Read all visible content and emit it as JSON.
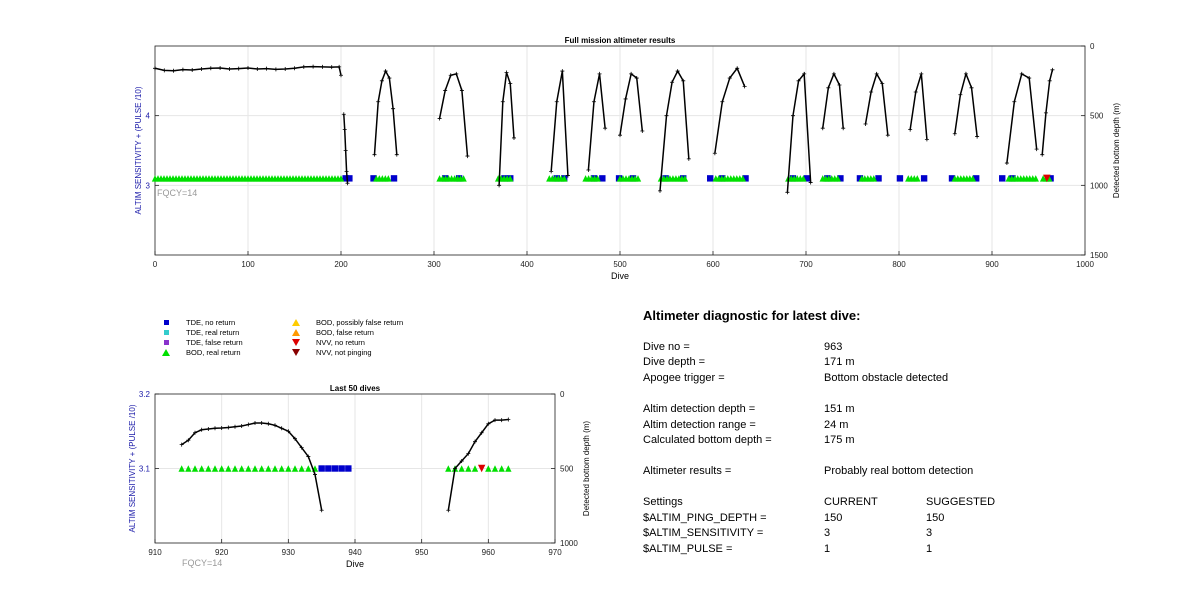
{
  "chart_data": [
    {
      "type": "scatter",
      "title": "Full mission altimeter results",
      "xlabel": "Dive",
      "ylabel_left": "ALTIM SENSITIVITY + (PULSE /10)",
      "ylabel_right": "Detected bottom depth (m)",
      "xlim": [
        0,
        1000
      ],
      "ylim_left": [
        2.0,
        5.0
      ],
      "ylim_right": [
        1500,
        0
      ],
      "x_ticks": [
        "0",
        "100",
        "200",
        "300",
        "400",
        "500",
        "600",
        "700",
        "800",
        "900",
        "1000"
      ],
      "y_ticks_left": [
        "3",
        "4"
      ],
      "y_ticks_right": [
        "0",
        "500",
        "1000",
        "1500"
      ],
      "grid": true,
      "annotation": "FQCY=14",
      "series": [
        {
          "name": "TDE, no return",
          "marker": "square",
          "color": "#0000cc",
          "x": [
            205,
            209,
            235,
            257,
            312,
            327,
            376,
            382,
            432,
            440,
            472,
            481,
            499,
            514,
            549,
            568,
            597,
            610,
            635,
            686,
            701,
            723,
            737,
            758,
            778,
            801,
            827,
            857,
            883,
            911,
            922,
            963
          ],
          "y": [
            3.1,
            3.1,
            3.1,
            3.1,
            3.1,
            3.1,
            3.1,
            3.1,
            3.1,
            3.1,
            3.1,
            3.1,
            3.1,
            3.1,
            3.1,
            3.1,
            3.1,
            3.1,
            3.1,
            3.1,
            3.1,
            3.1,
            3.1,
            3.1,
            3.1,
            3.1,
            3.1,
            3.1,
            3.1,
            3.1,
            3.1,
            3.1
          ]
        },
        {
          "name": "BOD, real return",
          "marker": "triangle-up",
          "color": "#00e000",
          "segments": [
            [
              0,
              200
            ],
            [
              238,
              252
            ],
            [
              306,
              334
            ],
            [
              369,
              384
            ],
            [
              424,
              442
            ],
            [
              463,
              478
            ],
            [
              500,
              520
            ],
            [
              544,
              570
            ],
            [
              603,
              635
            ],
            [
              681,
              700
            ],
            [
              718,
              735
            ],
            [
              760,
              775
            ],
            [
              810,
              820
            ],
            [
              860,
              880
            ],
            [
              918,
              950
            ],
            [
              955,
              962
            ]
          ],
          "y": 3.1
        },
        {
          "name": "NVV, no return",
          "marker": "triangle-down",
          "color": "#dd0000",
          "x": [
            959
          ],
          "y": [
            3.1
          ]
        },
        {
          "name": "Detected bottom depth",
          "axis": "right",
          "marker": "plus",
          "color": "#000000",
          "segments": [
            {
              "x": [
                0,
                10,
                20,
                30,
                40,
                50,
                60,
                70,
                80,
                90,
                100,
                110,
                120,
                130,
                140,
                150,
                160,
                170,
                180,
                190,
                198,
                200
              ],
              "y": [
                160,
                175,
                178,
                170,
                172,
                165,
                160,
                158,
                165,
                162,
                158,
                165,
                162,
                168,
                165,
                160,
                150,
                148,
                150,
                152,
                150,
                210
              ]
            },
            {
              "x": [
                203,
                204,
                205,
                206,
                207
              ],
              "y": [
                490,
                600,
                750,
                900,
                985
              ]
            },
            {
              "x": [
                236,
                240,
                244,
                248,
                252,
                256,
                260
              ],
              "y": [
                780,
                400,
                250,
                180,
                230,
                450,
                780
              ]
            },
            {
              "x": [
                306,
                312,
                318,
                324,
                330,
                336
              ],
              "y": [
                520,
                320,
                210,
                200,
                320,
                790
              ]
            },
            {
              "x": [
                370,
                374,
                378,
                382,
                386
              ],
              "y": [
                1000,
                400,
                190,
                270,
                660
              ]
            },
            {
              "x": [
                426,
                432,
                438,
                444
              ],
              "y": [
                900,
                400,
                180,
                930
              ]
            },
            {
              "x": [
                466,
                472,
                478,
                484
              ],
              "y": [
                890,
                400,
                200,
                590
              ]
            },
            {
              "x": [
                500,
                506,
                512,
                518,
                524
              ],
              "y": [
                640,
                380,
                200,
                230,
                610
              ]
            },
            {
              "x": [
                543,
                550,
                556,
                562,
                568,
                574
              ],
              "y": [
                1040,
                500,
                260,
                180,
                250,
                810
              ]
            },
            {
              "x": [
                602,
                610,
                618,
                626,
                634
              ],
              "y": [
                770,
                400,
                230,
                160,
                290
              ]
            },
            {
              "x": [
                680,
                686,
                692,
                698,
                705
              ],
              "y": [
                1050,
                500,
                250,
                200,
                980
              ]
            },
            {
              "x": [
                718,
                724,
                730,
                736,
                740
              ],
              "y": [
                590,
                300,
                200,
                280,
                590
              ]
            },
            {
              "x": [
                764,
                770,
                776,
                782,
                788
              ],
              "y": [
                560,
                330,
                200,
                270,
                640
              ]
            },
            {
              "x": [
                812,
                818,
                824,
                830
              ],
              "y": [
                600,
                330,
                200,
                670
              ]
            },
            {
              "x": [
                860,
                866,
                872,
                878,
                884
              ],
              "y": [
                630,
                350,
                200,
                300,
                650
              ]
            },
            {
              "x": [
                916,
                924,
                932,
                940,
                948
              ],
              "y": [
                840,
                400,
                200,
                230,
                740
              ]
            },
            {
              "x": [
                954,
                958,
                962,
                965
              ],
              "y": [
                780,
                480,
                250,
                171
              ]
            }
          ]
        }
      ]
    },
    {
      "type": "scatter",
      "title": "Last 50 dives",
      "xlabel": "Dive",
      "ylabel_left": "ALTIM SENSITIVITY + (PULSE /10)",
      "ylabel_right": "Detected bottom depth (m)",
      "xlim": [
        910,
        970
      ],
      "ylim_left": [
        3.0,
        3.2
      ],
      "ylim_right": [
        1000,
        0
      ],
      "x_ticks": [
        "910",
        "920",
        "930",
        "940",
        "950",
        "960",
        "970"
      ],
      "y_ticks_left": [
        "3.1",
        "3.2"
      ],
      "y_ticks_right": [
        "0",
        "500",
        "1000"
      ],
      "grid": true,
      "annotation": "FQCY=14",
      "series": [
        {
          "name": "TDE, no return",
          "marker": "square",
          "color": "#0000cc",
          "x": [
            935,
            936,
            937,
            938,
            939
          ],
          "y": [
            3.1,
            3.1,
            3.1,
            3.1,
            3.1
          ]
        },
        {
          "name": "BOD, real return",
          "marker": "triangle-up",
          "color": "#00e000",
          "x": [
            914,
            915,
            916,
            917,
            918,
            919,
            920,
            921,
            922,
            923,
            924,
            925,
            926,
            927,
            928,
            929,
            930,
            931,
            932,
            933,
            934,
            954,
            955,
            956,
            957,
            958,
            960,
            961,
            962,
            963
          ],
          "y": [
            3.1,
            3.1,
            3.1,
            3.1,
            3.1,
            3.1,
            3.1,
            3.1,
            3.1,
            3.1,
            3.1,
            3.1,
            3.1,
            3.1,
            3.1,
            3.1,
            3.1,
            3.1,
            3.1,
            3.1,
            3.1,
            3.1,
            3.1,
            3.1,
            3.1,
            3.1,
            3.1,
            3.1,
            3.1,
            3.1
          ]
        },
        {
          "name": "NVV, no return",
          "marker": "triangle-down",
          "color": "#dd0000",
          "x": [
            959
          ],
          "y": [
            3.1
          ]
        },
        {
          "name": "Detected bottom depth",
          "axis": "right",
          "marker": "plus",
          "color": "#000000",
          "segments": [
            {
              "x": [
                914,
                915,
                916,
                917,
                918,
                919,
                920,
                921,
                922,
                923,
                924,
                925,
                926,
                927,
                928,
                929,
                930,
                931,
                932,
                933,
                934,
                935
              ],
              "y": [
                340,
                310,
                260,
                240,
                235,
                230,
                228,
                225,
                220,
                215,
                205,
                195,
                195,
                200,
                210,
                230,
                250,
                300,
                360,
                420,
                540,
                780
              ]
            },
            {
              "x": [
                954,
                955,
                956,
                957,
                958,
                959,
                960,
                961,
                962,
                963
              ],
              "y": [
                780,
                500,
                450,
                400,
                320,
                260,
                200,
                175,
                175,
                171
              ]
            }
          ]
        }
      ]
    }
  ],
  "legend": {
    "items": [
      {
        "label": "TDE, no return",
        "shape": "square",
        "color": "#0000cc"
      },
      {
        "label": "TDE, real return",
        "shape": "square",
        "color": "#33cccc"
      },
      {
        "label": "TDE, false return",
        "shape": "square",
        "color": "#8833cc"
      },
      {
        "label": "BOD, real return",
        "shape": "triangle-up",
        "color": "#00e000"
      },
      {
        "label": "BOD, possibly false return",
        "shape": "triangle-up",
        "color": "#ffcc00"
      },
      {
        "label": "BOD, false return",
        "shape": "triangle-up",
        "color": "#ff9900"
      },
      {
        "label": "NVV, no return",
        "shape": "triangle-down",
        "color": "#dd0000"
      },
      {
        "label": "NVV, not pinging",
        "shape": "triangle-down",
        "color": "#880000"
      }
    ]
  },
  "diagnostic": {
    "title": "Altimeter diagnostic for latest dive:",
    "rows": [
      {
        "label": "Dive no =",
        "value": "963"
      },
      {
        "label": "Dive depth =",
        "value": "171 m"
      },
      {
        "label": "Apogee trigger =",
        "value": "Bottom obstacle detected"
      },
      {
        "label": "Altim detection depth =",
        "value": "151 m"
      },
      {
        "label": "Altim detection range =",
        "value": "24 m"
      },
      {
        "label": "Calculated bottom depth =",
        "value": "175 m"
      },
      {
        "label": "Altimeter results =",
        "value": "Probably real bottom detection"
      }
    ],
    "settings": {
      "header": {
        "label": "Settings",
        "current": "CURRENT",
        "suggested": "SUGGESTED"
      },
      "rows": [
        {
          "label": "$ALTIM_PING_DEPTH =",
          "current": "150",
          "suggested": "150"
        },
        {
          "label": "$ALTIM_SENSITIVITY =",
          "current": "3",
          "suggested": "3"
        },
        {
          "label": "$ALTIM_PULSE =",
          "current": "1",
          "suggested": "1"
        }
      ]
    }
  }
}
